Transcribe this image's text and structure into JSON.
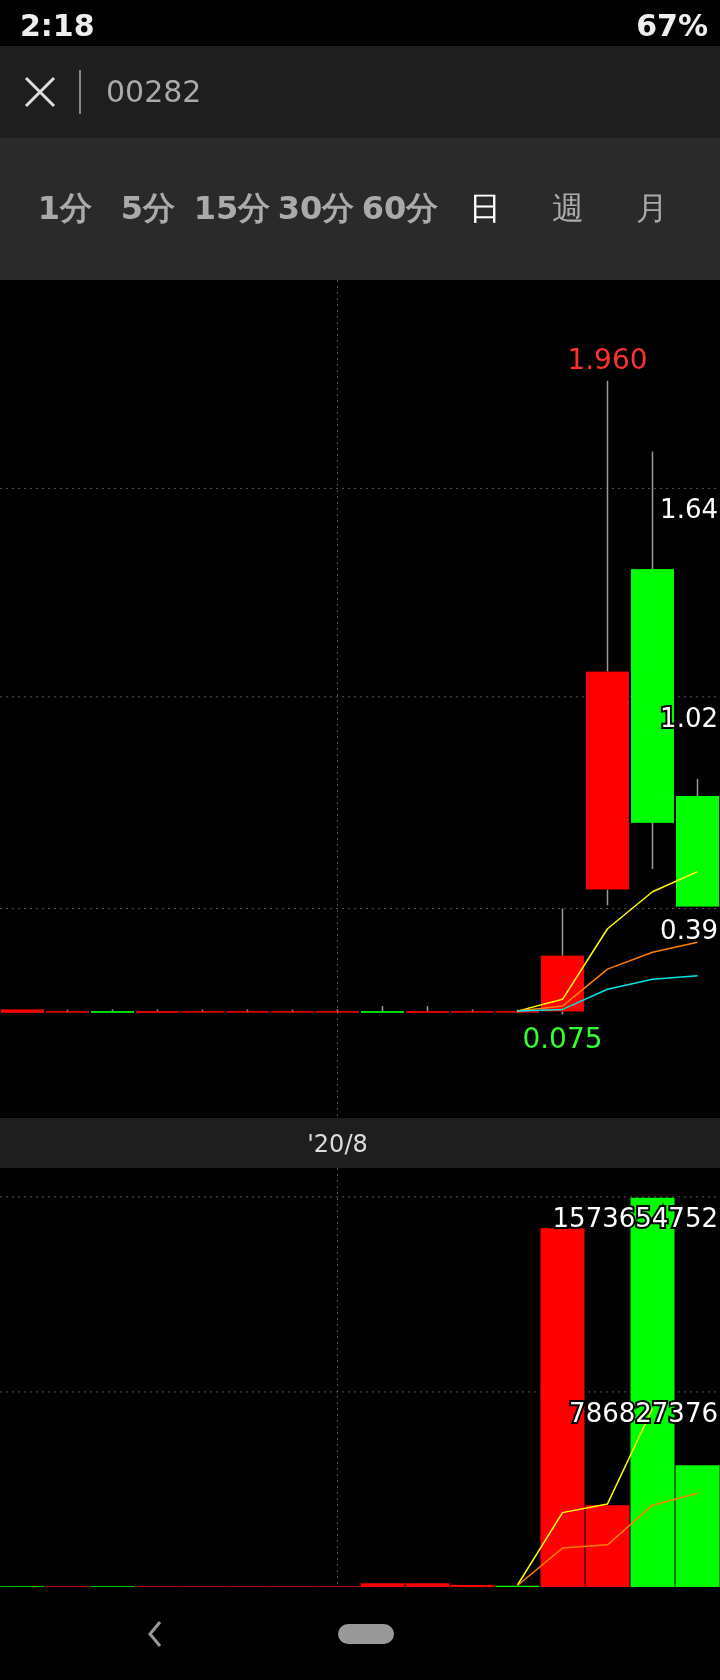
{
  "chart_data": [
    {
      "type": "candlestick",
      "title": "00282",
      "categories": [
        null,
        null,
        null,
        null,
        null,
        null,
        null,
        "'20/8",
        null,
        null,
        null,
        null,
        null,
        null,
        null,
        null
      ],
      "ohlc": [
        [
          0.08,
          0.09,
          0.08,
          0.09
        ],
        [
          0.085,
          0.09,
          0.08,
          0.085
        ],
        [
          0.085,
          0.09,
          0.08,
          0.08
        ],
        [
          0.08,
          0.09,
          0.08,
          0.085
        ],
        [
          0.085,
          0.09,
          0.08,
          0.085
        ],
        [
          0.085,
          0.09,
          0.08,
          0.085
        ],
        [
          0.085,
          0.09,
          0.08,
          0.085
        ],
        [
          0.085,
          0.09,
          0.08,
          0.085
        ],
        [
          0.085,
          0.1,
          0.08,
          0.08
        ],
        [
          0.08,
          0.1,
          0.08,
          0.085
        ],
        [
          0.085,
          0.09,
          0.08,
          0.085
        ],
        [
          0.085,
          0.09,
          0.08,
          0.085
        ],
        [
          0.084,
          0.39,
          0.075,
          0.25
        ],
        [
          0.447,
          1.96,
          0.4,
          1.095
        ],
        [
          1.4,
          1.75,
          0.508,
          0.645
        ],
        [
          0.725,
          0.776,
          0.396,
          0.396
        ]
      ],
      "series": [
        {
          "type": "line",
          "color": "#ffff00",
          "values": [
            null,
            null,
            null,
            null,
            null,
            null,
            null,
            null,
            null,
            null,
            null,
            0.085,
            0.12,
            0.33,
            0.44,
            0.5
          ]
        },
        {
          "type": "line",
          "color": "#ff8000",
          "values": [
            null,
            null,
            null,
            null,
            null,
            null,
            null,
            null,
            null,
            null,
            null,
            0.085,
            0.1,
            0.21,
            0.26,
            0.29
          ]
        },
        {
          "type": "line",
          "color": "#00e5e5",
          "values": [
            null,
            null,
            null,
            null,
            null,
            null,
            null,
            null,
            null,
            null,
            null,
            0.085,
            0.09,
            0.15,
            0.18,
            0.19
          ]
        }
      ],
      "ylim": [
        -0.23,
        2.26
      ],
      "yticks": [
        0.39,
        1.02,
        1.64
      ],
      "grid": true,
      "annotations": [
        "1.960",
        "0.075",
        "2:18",
        "67%",
        "1分",
        "5分",
        "15分",
        "30分",
        "60分",
        "日",
        "週",
        "月"
      ]
    },
    {
      "type": "bar",
      "categories": [
        null,
        null,
        null,
        null,
        null,
        null,
        null,
        null,
        null,
        null,
        null,
        null,
        null,
        null,
        null,
        null
      ],
      "series": [
        {
          "type": "bar",
          "colors": [
            "#00ff00",
            "#ff0000",
            "#00ff00",
            "#ff0000",
            "#ff0000",
            "#ff0000",
            "#ff0000",
            "#ff0000",
            "#ff0000",
            "#ff0000",
            "#ff0000",
            "#00ff00",
            "#ff0000",
            "#ff0000",
            "#00ff00",
            "#00ff00"
          ],
          "values": [
            3000000,
            3000000,
            3000000,
            3000000,
            3000000,
            3000000,
            3000000,
            3000000,
            15000000,
            15000000,
            8000000,
            5000000,
            1447000000,
            330000000,
            1570000000,
            491000000
          ]
        },
        {
          "type": "line",
          "color": "#ffff00",
          "values": [
            null,
            null,
            null,
            null,
            null,
            null,
            null,
            null,
            null,
            null,
            null,
            8000000,
            300000000,
            335000000,
            720000000,
            null
          ]
        },
        {
          "type": "line",
          "color": "#ff8000",
          "values": [
            null,
            null,
            null,
            null,
            null,
            null,
            null,
            null,
            null,
            null,
            null,
            6000000,
            157000000,
            170000000,
            330000000,
            378000000
          ]
        }
      ],
      "ylim": [
        0,
        1690000000
      ],
      "yticks": [
        786827376,
        1573654752
      ],
      "grid": "y"
    }
  ]
}
